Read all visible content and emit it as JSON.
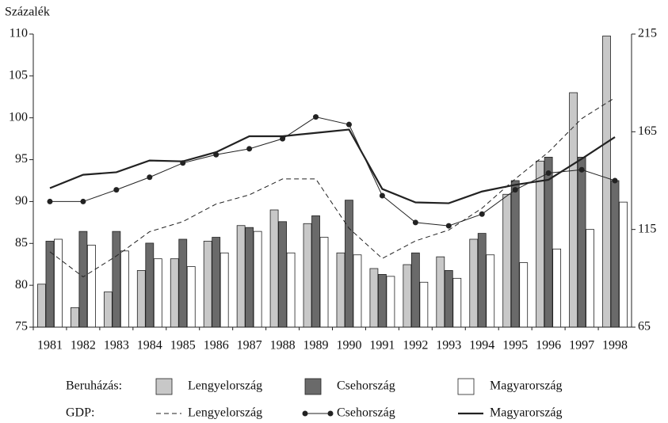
{
  "chart_data": {
    "type": "bar_line",
    "y_axis_label": "Százalék",
    "categories": [
      "1981",
      "1982",
      "1983",
      "1984",
      "1985",
      "1986",
      "1987",
      "1988",
      "1989",
      "1990",
      "1991",
      "1992",
      "1993",
      "1994",
      "1995",
      "1996",
      "1997",
      "1998"
    ],
    "ylim": [
      75,
      110
    ],
    "yticks": [
      75,
      80,
      85,
      90,
      95,
      100,
      105,
      110
    ],
    "y2lim": [
      65,
      215
    ],
    "y2ticks": [
      65,
      115,
      165,
      215
    ],
    "bar_legend_label": "Beruházás:",
    "line_legend_label": "GDP:",
    "bar_series": [
      {
        "name": "Lengyelország",
        "color": "#c8c8c8",
        "axis": "y2",
        "values": [
          87,
          75,
          83,
          94,
          100,
          109,
          117,
          125,
          118,
          103,
          95,
          97,
          101,
          110,
          133,
          150,
          185,
          214
        ]
      },
      {
        "name": "Csehország",
        "color": "#6a6a6a",
        "axis": "y2",
        "values": [
          109,
          114,
          114,
          108,
          110,
          111,
          116,
          119,
          122,
          130,
          92,
          103,
          94,
          113,
          140,
          152,
          152,
          140
        ]
      },
      {
        "name": "Magyarország",
        "color": "#ffffff",
        "axis": "y2",
        "values": [
          110,
          107,
          104,
          100,
          96,
          103,
          114,
          103,
          111,
          102,
          91,
          88,
          90,
          102,
          98,
          105,
          115,
          129
        ]
      }
    ],
    "line_series": [
      {
        "name": "Lengyelország",
        "color": "#222222",
        "style": "dashed",
        "values": [
          84.0,
          81.0,
          83.5,
          86.4,
          87.6,
          89.7,
          90.8,
          92.7,
          92.7,
          86.8,
          83.2,
          85.3,
          86.6,
          89.2,
          92.7,
          95.9,
          99.9,
          102.4
        ]
      },
      {
        "name": "Csehország",
        "color": "#222222",
        "style": "markers",
        "values": [
          90.0,
          90.0,
          91.4,
          92.9,
          94.6,
          95.6,
          96.3,
          97.5,
          100.1,
          99.2,
          90.7,
          87.5,
          87.1,
          88.5,
          91.4,
          93.4,
          93.8,
          92.5
        ]
      },
      {
        "name": "Magyarország",
        "color": "#222222",
        "style": "solid",
        "values": [
          91.6,
          93.2,
          93.5,
          94.9,
          94.8,
          95.9,
          97.8,
          97.8,
          98.2,
          98.6,
          91.5,
          89.9,
          89.8,
          91.2,
          92.0,
          92.6,
          95.1,
          97.7
        ]
      }
    ]
  }
}
